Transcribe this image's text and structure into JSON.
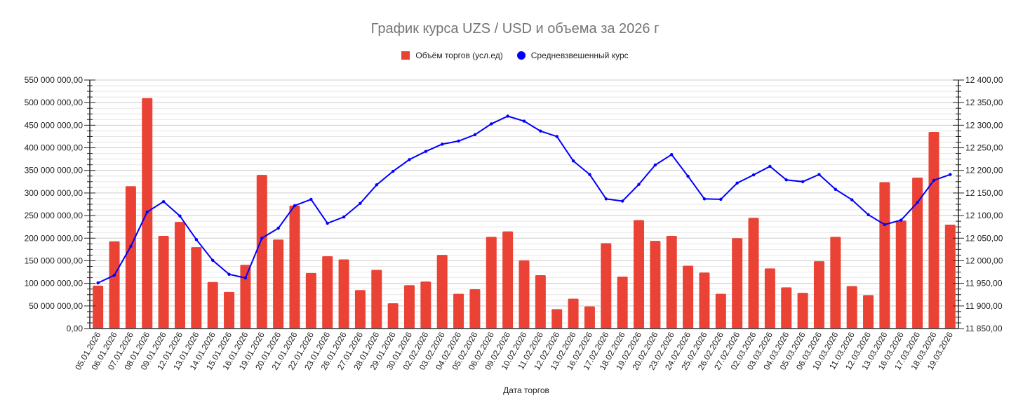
{
  "title": "График курса UZS / USD и объема за 2026 г",
  "legend": [
    {
      "label": "Объём торгов (усл.ед)",
      "color": "#ea4335",
      "shape": "square"
    },
    {
      "label": "Средневзвешенный курс",
      "color": "#0000ff",
      "shape": "circle"
    }
  ],
  "x_axis_title": "Дата торгов",
  "left_axis_ticks": [
    "0,00",
    "50 000 000,00",
    "100 000 000,00",
    "150 000 000,00",
    "200 000 000,00",
    "250 000 000,00",
    "300 000 000,00",
    "350 000 000,00",
    "400 000 000,00",
    "450 000 000,00",
    "500 000 000,00",
    "550 000 000,00"
  ],
  "right_axis_ticks": [
    "11 850,00",
    "11 900,00",
    "11 950,00",
    "12 000,00",
    "12 050,00",
    "12 100,00",
    "12 150,00",
    "12 200,00",
    "12 250,00",
    "12 300,00",
    "12 350,00",
    "12 400,00"
  ],
  "chart_data": {
    "type": "bar+line",
    "title": "График курса UZS / USD и объема за 2026 г",
    "xlabel": "Дата торгов",
    "ylabel_left": "Объём торгов (усл.ед)",
    "ylabel_right": "Средневзвешенный курс",
    "ylim_left": [
      0,
      550000000
    ],
    "ylim_right": [
      11850,
      12400
    ],
    "grid": true,
    "legend_position": "top",
    "categories": [
      "05.01.2026",
      "06.01.2026",
      "07.01.2026",
      "08.01.2026",
      "09.01.2026",
      "12.01.2026",
      "13.01.2026",
      "14.01.2026",
      "15.01.2026",
      "16.01.2026",
      "19.01.2026",
      "20.01.2026",
      "21.01.2026",
      "22.01.2026",
      "23.01.2026",
      "26.01.2026",
      "27.01.2026",
      "28.01.2026",
      "29.01.2026",
      "30.01.2026",
      "02.02.2026",
      "03.02.2026",
      "04.02.2026",
      "05.02.2026",
      "06.02.2026",
      "09.02.2026",
      "10.02.2026",
      "11.02.2026",
      "12.02.2026",
      "13.02.2026",
      "16.02.2026",
      "17.02.2026",
      "18.02.2026",
      "19.02.2026",
      "20.02.2026",
      "23.02.2026",
      "24.02.2026",
      "25.02.2026",
      "26.02.2026",
      "27.02.2026",
      "02.03.2026",
      "03.03.2026",
      "04.03.2026",
      "05.03.2026",
      "06.03.2026",
      "10.03.2026",
      "11.03.2026",
      "12.03.2026",
      "13.03.2026",
      "16.03.2026",
      "17.03.2026",
      "18.03.2026",
      "19.03.2026"
    ],
    "series": [
      {
        "name": "Объём торгов (усл.ед)",
        "type": "bar",
        "axis": "left",
        "color": "#ea4335",
        "values": [
          95000000,
          193000000,
          315000000,
          510000000,
          205000000,
          236000000,
          180000000,
          103000000,
          81000000,
          141000000,
          340000000,
          197000000,
          272000000,
          123000000,
          160000000,
          153000000,
          85000000,
          130000000,
          56000000,
          96000000,
          104000000,
          163000000,
          77000000,
          87000000,
          203000000,
          215000000,
          151000000,
          118000000,
          43000000,
          66000000,
          49000000,
          189000000,
          115000000,
          240000000,
          194000000,
          205000000,
          139000000,
          124000000,
          77000000,
          200000000,
          245000000,
          133000000,
          91000000,
          79000000,
          149000000,
          203000000,
          94000000,
          74000000,
          324000000,
          239000000,
          334000000,
          435000000,
          230000000
        ]
      },
      {
        "name": "Средневзвешенный курс",
        "type": "line",
        "axis": "right",
        "color": "#0000ff",
        "values": [
          11951,
          11968,
          12032,
          12108,
          12131,
          12099,
          12047,
          12001,
          11970,
          11962,
          12050,
          12072,
          12122,
          12136,
          12083,
          12097,
          12127,
          12168,
          12198,
          12224,
          12242,
          12258,
          12265,
          12279,
          12303,
          12320,
          12309,
          12287,
          12275,
          12221,
          12191,
          12137,
          12132,
          12169,
          12212,
          12235,
          12187,
          12137,
          12136,
          12172,
          12190,
          12209,
          12179,
          12175,
          12191,
          12158,
          12135,
          12102,
          12080,
          12090,
          12129,
          12178,
          12191
        ]
      }
    ]
  }
}
